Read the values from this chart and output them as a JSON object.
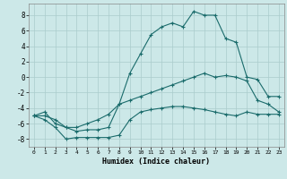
{
  "xlabel": "Humidex (Indice chaleur)",
  "bg_color": "#cce8e8",
  "grid_color": "#aacccc",
  "line_color": "#1a6b6b",
  "xlim": [
    -0.5,
    23.5
  ],
  "ylim": [
    -9,
    9.5
  ],
  "xticks": [
    0,
    1,
    2,
    3,
    4,
    5,
    6,
    7,
    8,
    9,
    10,
    11,
    12,
    13,
    14,
    15,
    16,
    17,
    18,
    19,
    20,
    21,
    22,
    23
  ],
  "yticks": [
    -8,
    -6,
    -4,
    -2,
    0,
    2,
    4,
    6,
    8
  ],
  "series1_x": [
    0,
    1,
    2,
    3,
    4,
    5,
    6,
    7,
    8,
    9,
    10,
    11,
    12,
    13,
    14,
    15,
    16,
    17,
    18,
    19,
    20,
    21,
    22,
    23
  ],
  "series1_y": [
    -5,
    -5.5,
    -6.5,
    -8,
    -7.8,
    -7.8,
    -7.8,
    -7.8,
    -7.5,
    -5.5,
    -4.5,
    -4.2,
    -4.0,
    -3.8,
    -3.8,
    -4.0,
    -4.2,
    -4.5,
    -4.8,
    -5.0,
    -4.5,
    -4.8,
    -4.8,
    -4.8
  ],
  "series2_x": [
    0,
    1,
    2,
    3,
    4,
    5,
    6,
    7,
    8,
    9,
    10,
    11,
    12,
    13,
    14,
    15,
    16,
    17,
    18,
    19,
    20,
    21,
    22,
    23
  ],
  "series2_y": [
    -5,
    -5,
    -5.5,
    -6.5,
    -6.5,
    -6,
    -5.5,
    -4.8,
    -3.5,
    -3,
    -2.5,
    -2,
    -1.5,
    -1,
    -0.5,
    0,
    0.5,
    0,
    0.2,
    0,
    -0.5,
    -3,
    -3.5,
    -4.5
  ],
  "series3_x": [
    0,
    1,
    2,
    3,
    4,
    5,
    6,
    7,
    8,
    9,
    10,
    11,
    12,
    13,
    14,
    15,
    16,
    17,
    18,
    19,
    20,
    21,
    22,
    23
  ],
  "series3_y": [
    -5,
    -4.5,
    -6,
    -6.5,
    -7,
    -6.8,
    -6.8,
    -6.5,
    -3.5,
    0.5,
    3,
    5.5,
    6.5,
    7,
    6.5,
    8.5,
    8,
    8,
    5,
    4.5,
    0,
    -0.3,
    -2.5,
    -2.5
  ]
}
